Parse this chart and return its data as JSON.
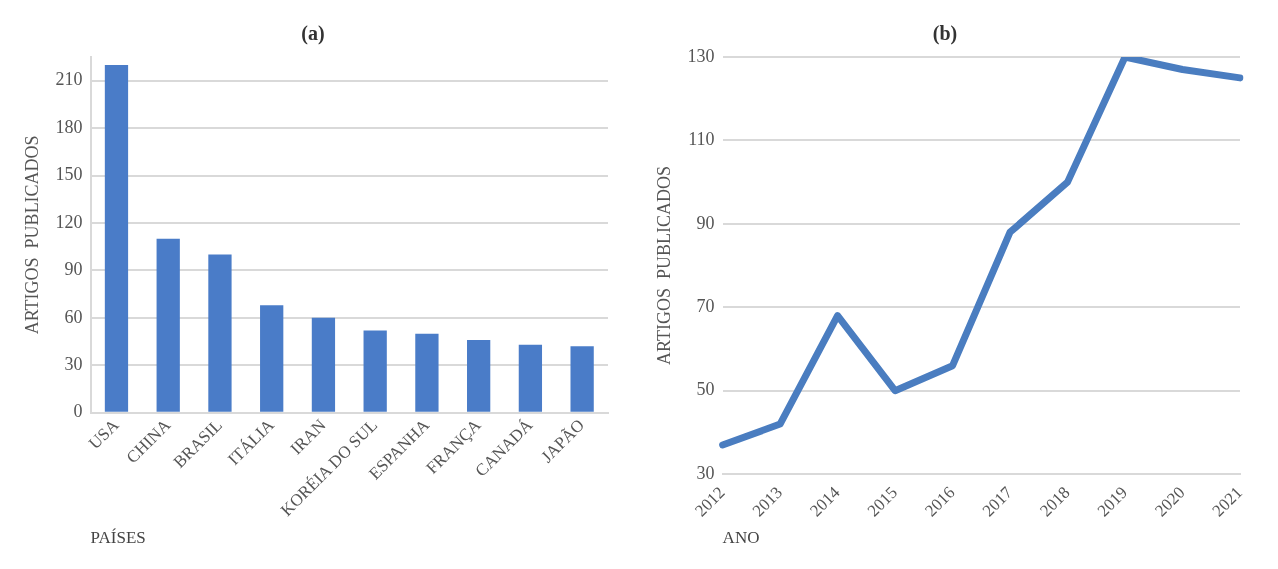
{
  "chart_data": [
    {
      "type": "bar",
      "title": "(a)",
      "xlabel": "PAÍSES",
      "ylabel": "ARTIGOS  PUBLICADOS",
      "categories": [
        "USA",
        "CHINA",
        "BRASIL",
        "ITÁLIA",
        "IRAN",
        "KORÉIA DO SUL",
        "ESPANHA",
        "FRANÇA",
        "CANADÁ",
        "JAPÃO"
      ],
      "values": [
        220,
        110,
        100,
        68,
        60,
        52,
        50,
        46,
        43,
        42
      ],
      "color": "#4a7cc8",
      "ylim": [
        0,
        225
      ],
      "yticks": [
        0,
        30,
        60,
        90,
        120,
        150,
        180,
        210
      ],
      "grid": "y",
      "legend": false
    },
    {
      "type": "line",
      "title": "(b)",
      "xlabel": "ANO",
      "ylabel": "ARTIGOS  PUBLICADOS",
      "categories": [
        "2012",
        "2013",
        "2014",
        "2015",
        "2016",
        "2017",
        "2018",
        "2019",
        "2020",
        "2021"
      ],
      "values": [
        37,
        42,
        68,
        50,
        56,
        88,
        100,
        130,
        127,
        125
      ],
      "color": "#4a7dc0",
      "ylim": [
        30,
        130
      ],
      "yticks": [
        30,
        50,
        70,
        90,
        110,
        130
      ],
      "grid": "y",
      "marker": "none",
      "line_style": "solid",
      "legend": false
    }
  ]
}
